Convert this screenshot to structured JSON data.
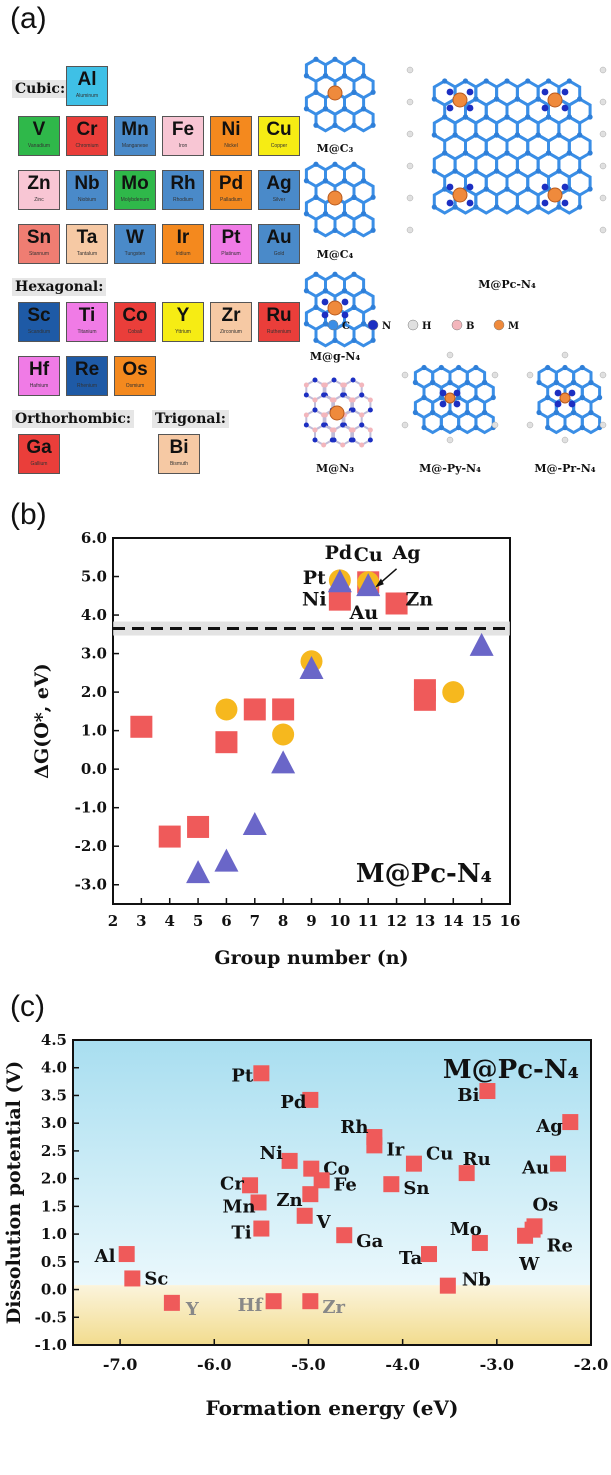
{
  "panel_labels": {
    "a": "(a)",
    "b": "(b)",
    "c": "(c)"
  },
  "periodic": {
    "cubic_label": "Cubic:",
    "hexagonal_label": "Hexagonal:",
    "orthorhombic_label": "Orthorhombic:",
    "trigonal_label": "Trigonal:",
    "tiles": [
      {
        "sym": "Al",
        "name": "Aluminum",
        "color": "#3fc0e6"
      },
      {
        "sym": "V",
        "name": "Vanadium",
        "color": "#2fb84a"
      },
      {
        "sym": "Cr",
        "name": "Chromium",
        "color": "#ea3e3a"
      },
      {
        "sym": "Mn",
        "name": "Manganese",
        "color": "#4a8ac9"
      },
      {
        "sym": "Fe",
        "name": "Iron",
        "color": "#f8c6d4"
      },
      {
        "sym": "Ni",
        "name": "Nickel",
        "color": "#f4891e"
      },
      {
        "sym": "Cu",
        "name": "Copper",
        "color": "#f6ec14"
      },
      {
        "sym": "Zn",
        "name": "Zinc",
        "color": "#f8c6d4"
      },
      {
        "sym": "Nb",
        "name": "Niobium",
        "color": "#4a8ac9"
      },
      {
        "sym": "Mo",
        "name": "Molybdenum",
        "color": "#2fb84a"
      },
      {
        "sym": "Rh",
        "name": "Rhodium",
        "color": "#4a8ac9"
      },
      {
        "sym": "Pd",
        "name": "Palladium",
        "color": "#f4891e"
      },
      {
        "sym": "Ag",
        "name": "Silver",
        "color": "#4a8ac9"
      },
      {
        "sym": "Sn",
        "name": "Stannum",
        "color": "#ef7d72"
      },
      {
        "sym": "Ta",
        "name": "Tantalum",
        "color": "#f6c9a4"
      },
      {
        "sym": "W",
        "name": "Tungsten",
        "color": "#4a8ac9"
      },
      {
        "sym": "Ir",
        "name": "Iridium",
        "color": "#f4891e"
      },
      {
        "sym": "Pt",
        "name": "Platinum",
        "color": "#f07be6"
      },
      {
        "sym": "Au",
        "name": "Gold",
        "color": "#4a8ac9"
      },
      {
        "sym": "Sc",
        "name": "Scandium",
        "color": "#1e5aa6"
      },
      {
        "sym": "Ti",
        "name": "Titanium",
        "color": "#f07be6"
      },
      {
        "sym": "Co",
        "name": "Cobalt",
        "color": "#ea3e3a"
      },
      {
        "sym": "Y",
        "name": "Yttrium",
        "color": "#f6ec14"
      },
      {
        "sym": "Zr",
        "name": "Zirconium",
        "color": "#f6c9a4"
      },
      {
        "sym": "Ru",
        "name": "Ruthenium",
        "color": "#ea3e3a"
      },
      {
        "sym": "Hf",
        "name": "Hafnium",
        "color": "#f07be6"
      },
      {
        "sym": "Re",
        "name": "Rhenium",
        "color": "#1e5aa6"
      },
      {
        "sym": "Os",
        "name": "Osmium",
        "color": "#f4891e"
      },
      {
        "sym": "Ga",
        "name": "Gallium",
        "color": "#ea3e3a"
      },
      {
        "sym": "Bi",
        "name": "Bismuth",
        "color": "#f6c9a4"
      }
    ]
  },
  "structures": {
    "labels": [
      "M@C₃",
      "M@C₄",
      "M@g-N₄",
      "M@N₃",
      "M@Pc-N₄",
      "M@-Py-N₄",
      "M@-Pr-N₄"
    ],
    "legend": [
      "C",
      "N",
      "H",
      "B",
      "M"
    ],
    "atom_colors": {
      "C": "#3a8ee6",
      "N": "#1c2fc2",
      "H": "#e0e0e0",
      "B": "#f3b6bc",
      "M": "#ef8a3c"
    }
  },
  "chart_data": [
    {
      "type": "scatter",
      "title": "M@Pc-N₄",
      "xlabel": "Group number (n)",
      "ylabel": "ΔG(O*, eV)",
      "xlim": [
        2,
        16
      ],
      "ylim": [
        -3.5,
        6.0
      ],
      "xticks": [
        2,
        3,
        4,
        5,
        6,
        7,
        8,
        9,
        10,
        11,
        12,
        13,
        14,
        15,
        16
      ],
      "yticks": [
        "6.0",
        "5.0",
        "4.0",
        "3.0",
        "2.0",
        "1.0",
        "0.0",
        "-1.0",
        "-2.0",
        "-3.0"
      ],
      "threshold": 3.65,
      "series": [
        {
          "marker": "square",
          "color": "#ef5a5a",
          "points": [
            [
              3,
              1.1
            ],
            [
              4,
              -1.75
            ],
            [
              5,
              -1.5
            ],
            [
              6,
              0.7
            ],
            [
              7,
              1.55
            ],
            [
              8,
              1.55
            ],
            [
              10,
              4.4
            ],
            [
              11,
              4.85
            ],
            [
              12,
              4.3
            ],
            [
              13,
              1.8
            ],
            [
              13,
              2.05
            ]
          ]
        },
        {
          "marker": "circle",
          "color": "#f6b81e",
          "points": [
            [
              6,
              1.55
            ],
            [
              8,
              0.9
            ],
            [
              9,
              2.8
            ],
            [
              10,
              4.9
            ],
            [
              11,
              4.85
            ],
            [
              14,
              2.0
            ]
          ]
        },
        {
          "marker": "triangle",
          "color": "#6a66c8",
          "points": [
            [
              5,
              -2.7
            ],
            [
              6,
              -2.4
            ],
            [
              7,
              -1.45
            ],
            [
              8,
              0.15
            ],
            [
              9,
              2.6
            ],
            [
              10,
              4.85
            ],
            [
              11,
              4.75
            ],
            [
              15,
              3.2
            ]
          ]
        }
      ],
      "annotations": [
        {
          "text": "Pd",
          "x": 9.95,
          "y": 5.45
        },
        {
          "text": "Cu",
          "x": 11.0,
          "y": 5.4
        },
        {
          "text": "Ag",
          "x": 12.35,
          "y": 5.45
        },
        {
          "text": "Pt",
          "x": 9.1,
          "y": 4.8
        },
        {
          "text": "Ni",
          "x": 9.1,
          "y": 4.25
        },
        {
          "text": "Au",
          "x": 10.85,
          "y": 3.9
        },
        {
          "text": "Zn",
          "x": 12.8,
          "y": 4.25
        }
      ]
    },
    {
      "type": "scatter",
      "title": "M@Pc-N₄",
      "xlabel": "Formation energy (eV)",
      "ylabel": "Dissolution potential (V)",
      "xlim": [
        -7.5,
        -2.0
      ],
      "ylim": [
        -1.0,
        4.5
      ],
      "xticks": [
        "-7.0",
        "-6.0",
        "-5.0",
        "-4.0",
        "-3.0",
        "-2.0"
      ],
      "yticks": [
        "4.5",
        "4.0",
        "3.5",
        "3.0",
        "2.5",
        "2.0",
        "1.5",
        "1.0",
        "0.5",
        "0.0",
        "-0.5",
        "-1.0"
      ],
      "points": [
        {
          "label": "Pt",
          "x": -5.5,
          "y": 3.9
        },
        {
          "label": "Pd",
          "x": -4.98,
          "y": 3.42
        },
        {
          "label": "Bi",
          "x": -3.1,
          "y": 3.58
        },
        {
          "label": "Ag",
          "x": -2.22,
          "y": 3.02
        },
        {
          "label": "Rh",
          "x": -4.3,
          "y": 2.75
        },
        {
          "label": "Ir",
          "x": -4.3,
          "y": 2.6
        },
        {
          "label": "Cu",
          "x": -3.88,
          "y": 2.27
        },
        {
          "label": "Ru",
          "x": -3.32,
          "y": 2.1
        },
        {
          "label": "Au",
          "x": -2.35,
          "y": 2.27
        },
        {
          "label": "Ni",
          "x": -5.2,
          "y": 2.32
        },
        {
          "label": "Co",
          "x": -4.97,
          "y": 2.18
        },
        {
          "label": "Cr",
          "x": -5.62,
          "y": 1.88
        },
        {
          "label": "Fe",
          "x": -4.86,
          "y": 1.97
        },
        {
          "label": "Sn",
          "x": -4.12,
          "y": 1.9
        },
        {
          "label": "Mn",
          "x": -5.53,
          "y": 1.57
        },
        {
          "label": "Zn",
          "x": -4.98,
          "y": 1.72
        },
        {
          "label": "V",
          "x": -5.04,
          "y": 1.33
        },
        {
          "label": "Ti",
          "x": -5.5,
          "y": 1.1
        },
        {
          "label": "Ga",
          "x": -4.62,
          "y": 0.98
        },
        {
          "label": "Mo",
          "x": -3.18,
          "y": 0.84
        },
        {
          "label": "Os",
          "x": -2.6,
          "y": 1.14
        },
        {
          "label": "Re",
          "x": -2.62,
          "y": 1.08
        },
        {
          "label": "W",
          "x": -2.7,
          "y": 0.97
        },
        {
          "label": "Ta",
          "x": -3.72,
          "y": 0.64
        },
        {
          "label": "Nb",
          "x": -3.52,
          "y": 0.07
        },
        {
          "label": "Al",
          "x": -6.93,
          "y": 0.64
        },
        {
          "label": "Sc",
          "x": -6.87,
          "y": 0.2
        },
        {
          "label": "Y",
          "x": -6.45,
          "y": -0.24
        },
        {
          "label": "Hf",
          "x": -5.37,
          "y": -0.21
        },
        {
          "label": "Zr",
          "x": -4.98,
          "y": -0.21
        }
      ],
      "marker_color": "#ef5a5a",
      "stable_bg": "#c7ecf6",
      "unstable_bg": "#f7e8b6"
    }
  ]
}
